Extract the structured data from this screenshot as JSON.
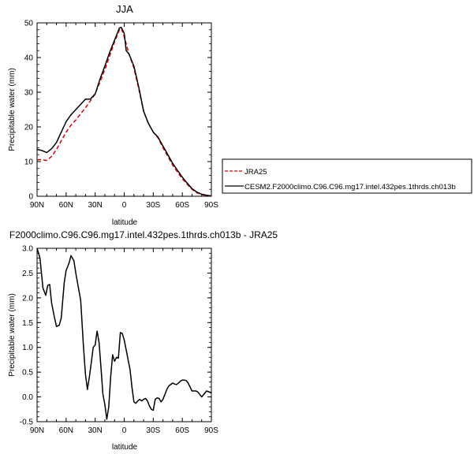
{
  "chart_data": [
    {
      "type": "line",
      "title": "JJA",
      "xlabel": "latitude",
      "ylabel": "Precipitable water (mm)",
      "xlim": [
        90,
        -90
      ],
      "ylim": [
        0,
        50
      ],
      "x_ticks": [
        {
          "value": 90,
          "label": "90N"
        },
        {
          "value": 60,
          "label": "60N"
        },
        {
          "value": 30,
          "label": "30N"
        },
        {
          "value": 0,
          "label": "0"
        },
        {
          "value": -30,
          "label": "30S"
        },
        {
          "value": -60,
          "label": "60S"
        },
        {
          "value": -90,
          "label": "90S"
        }
      ],
      "y_ticks": [
        0,
        10,
        20,
        30,
        40,
        50
      ],
      "legend_position": "outside-right",
      "series": [
        {
          "name": "JRA25",
          "color": "#dd0000",
          "dash": "dashed",
          "points": [
            [
              90,
              10.5
            ],
            [
              85,
              10.6
            ],
            [
              80,
              10.3
            ],
            [
              75,
              11.5
            ],
            [
              70,
              13.5
            ],
            [
              65,
              16
            ],
            [
              60,
              18.5
            ],
            [
              55,
              20.5
            ],
            [
              50,
              22
            ],
            [
              45,
              23.8
            ],
            [
              40,
              25.5
            ],
            [
              35,
              27.5
            ],
            [
              30,
              29.5
            ],
            [
              25,
              33
            ],
            [
              20,
              36.5
            ],
            [
              15,
              40.5
            ],
            [
              10,
              44.5
            ],
            [
              5,
              48
            ],
            [
              3,
              48.4
            ],
            [
              0,
              46
            ],
            [
              -5,
              41
            ],
            [
              -10,
              37
            ],
            [
              -15,
              31
            ],
            [
              -20,
              24.5
            ],
            [
              -25,
              21
            ],
            [
              -30,
              18.5
            ],
            [
              -35,
              16.8
            ],
            [
              -40,
              14
            ],
            [
              -45,
              11.5
            ],
            [
              -50,
              9
            ],
            [
              -55,
              7
            ],
            [
              -60,
              5
            ],
            [
              -65,
              3.5
            ],
            [
              -70,
              2
            ],
            [
              -75,
              1
            ],
            [
              -80,
              0.5
            ],
            [
              -85,
              0.2
            ],
            [
              -90,
              0.1
            ]
          ]
        },
        {
          "name": "CESM2.F2000climo.C96.C96.mg17.intel.432pes.1thrds.ch013b",
          "color": "#000000",
          "dash": "solid",
          "points": [
            [
              90,
              13.5
            ],
            [
              85,
              13.2
            ],
            [
              80,
              12.6
            ],
            [
              75,
              13.7
            ],
            [
              70,
              15.5
            ],
            [
              65,
              18.5
            ],
            [
              60,
              21.5
            ],
            [
              55,
              23.5
            ],
            [
              50,
              25
            ],
            [
              45,
              26.5
            ],
            [
              40,
              28
            ],
            [
              35,
              28
            ],
            [
              30,
              29.5
            ],
            [
              25,
              33.8
            ],
            [
              20,
              37.5
            ],
            [
              15,
              41.5
            ],
            [
              10,
              45
            ],
            [
              5,
              48.5
            ],
            [
              3,
              48.7
            ],
            [
              0,
              47
            ],
            [
              -2,
              42
            ],
            [
              -5,
              41
            ],
            [
              -10,
              37.5
            ],
            [
              -15,
              31.5
            ],
            [
              -20,
              24.5
            ],
            [
              -25,
              21
            ],
            [
              -30,
              18.5
            ],
            [
              -35,
              17
            ],
            [
              -40,
              14.5
            ],
            [
              -45,
              12
            ],
            [
              -50,
              9.5
            ],
            [
              -55,
              7.5
            ],
            [
              -60,
              5.5
            ],
            [
              -65,
              3.8
            ],
            [
              -70,
              2.2
            ],
            [
              -75,
              1.2
            ],
            [
              -80,
              0.6
            ],
            [
              -85,
              0.3
            ],
            [
              -90,
              0.1
            ]
          ]
        }
      ]
    },
    {
      "type": "line",
      "title": "F2000climo.C96.C96.mg17.intel.432pes.1thrds.ch013b - JRA25",
      "xlabel": "latitude",
      "ylabel": "Precipitable water (mm)",
      "xlim": [
        90,
        -90
      ],
      "ylim": [
        -0.5,
        3.0
      ],
      "x_ticks": [
        {
          "value": 90,
          "label": "90N"
        },
        {
          "value": 60,
          "label": "60N"
        },
        {
          "value": 30,
          "label": "30N"
        },
        {
          "value": 0,
          "label": "0"
        },
        {
          "value": -30,
          "label": "30S"
        },
        {
          "value": -60,
          "label": "60S"
        },
        {
          "value": -90,
          "label": "90S"
        }
      ],
      "y_ticks": [
        {
          "value": 3.0,
          "label": "3.0"
        },
        {
          "value": 2.5,
          "label": "2.5"
        },
        {
          "value": 2.0,
          "label": "2.0"
        },
        {
          "value": 1.5,
          "label": "1.5"
        },
        {
          "value": 1.0,
          "label": "1.0"
        },
        {
          "value": 0.5,
          "label": "0.5"
        },
        {
          "value": 0.0,
          "label": "0.0"
        },
        {
          "value": -0.5,
          "label": "-0.5"
        }
      ],
      "series": [
        {
          "color": "#000000",
          "dash": "solid",
          "points": [
            [
              90,
              3.0
            ],
            [
              87,
              2.8
            ],
            [
              84,
              2.2
            ],
            [
              81,
              2.05
            ],
            [
              79,
              2.25
            ],
            [
              77,
              2.27
            ],
            [
              75,
              1.9
            ],
            [
              72,
              1.6
            ],
            [
              70,
              1.42
            ],
            [
              67,
              1.45
            ],
            [
              65,
              1.6
            ],
            [
              62,
              2.3
            ],
            [
              60,
              2.55
            ],
            [
              57,
              2.7
            ],
            [
              55,
              2.85
            ],
            [
              52,
              2.75
            ],
            [
              50,
              2.5
            ],
            [
              45,
              1.95
            ],
            [
              42,
              1.0
            ],
            [
              40,
              0.45
            ],
            [
              38,
              0.15
            ],
            [
              36,
              0.4
            ],
            [
              34,
              0.7
            ],
            [
              32,
              1.0
            ],
            [
              30,
              1.05
            ],
            [
              28,
              1.33
            ],
            [
              26,
              1.1
            ],
            [
              24,
              0.6
            ],
            [
              22,
              0.05
            ],
            [
              20,
              -0.15
            ],
            [
              18,
              -0.45
            ],
            [
              16,
              -0.2
            ],
            [
              14,
              0.4
            ],
            [
              12,
              0.85
            ],
            [
              10,
              0.72
            ],
            [
              8,
              0.8
            ],
            [
              6,
              0.78
            ],
            [
              4,
              1.3
            ],
            [
              2,
              1.28
            ],
            [
              0,
              1.15
            ],
            [
              -2,
              0.95
            ],
            [
              -4,
              0.75
            ],
            [
              -6,
              0.55
            ],
            [
              -8,
              0.2
            ],
            [
              -10,
              -0.1
            ],
            [
              -12,
              -0.13
            ],
            [
              -14,
              -0.08
            ],
            [
              -16,
              -0.05
            ],
            [
              -18,
              -0.08
            ],
            [
              -20,
              -0.05
            ],
            [
              -22,
              -0.03
            ],
            [
              -24,
              -0.08
            ],
            [
              -26,
              -0.18
            ],
            [
              -28,
              -0.25
            ],
            [
              -30,
              -0.27
            ],
            [
              -32,
              -0.05
            ],
            [
              -34,
              -0.02
            ],
            [
              -36,
              -0.03
            ],
            [
              -38,
              -0.1
            ],
            [
              -40,
              -0.05
            ],
            [
              -42,
              0.05
            ],
            [
              -44,
              0.15
            ],
            [
              -46,
              0.22
            ],
            [
              -48,
              0.25
            ],
            [
              -50,
              0.28
            ],
            [
              -52,
              0.26
            ],
            [
              -54,
              0.25
            ],
            [
              -56,
              0.28
            ],
            [
              -58,
              0.32
            ],
            [
              -60,
              0.34
            ],
            [
              -62,
              0.34
            ],
            [
              -64,
              0.33
            ],
            [
              -66,
              0.28
            ],
            [
              -68,
              0.2
            ],
            [
              -70,
              0.12
            ],
            [
              -72,
              0.12
            ],
            [
              -74,
              0.12
            ],
            [
              -76,
              0.1
            ],
            [
              -78,
              0.05
            ],
            [
              -80,
              0.0
            ],
            [
              -85,
              0.12
            ],
            [
              -90,
              0.08
            ]
          ]
        }
      ]
    }
  ]
}
